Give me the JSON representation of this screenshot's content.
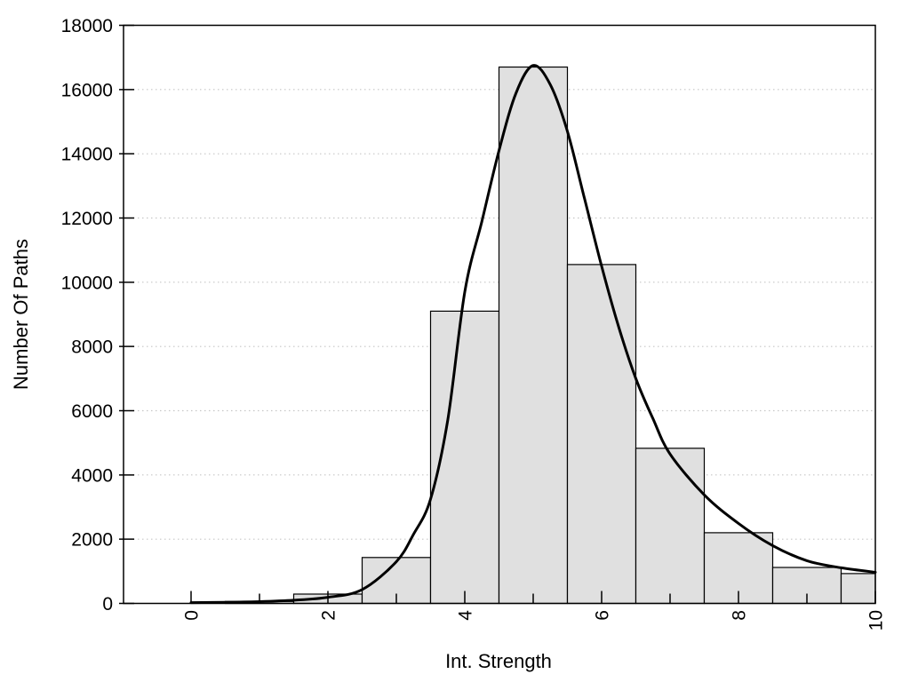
{
  "chart_data": {
    "type": "bar",
    "subtype": "histogram-with-fit-curve",
    "title": "",
    "xlabel": "Int. Strength",
    "ylabel": "Number Of Paths",
    "xlim": [
      -1,
      10
    ],
    "ylim": [
      0,
      18000
    ],
    "grid": "horizontal dotted lines at each y major tick",
    "legend": "none",
    "x_major_ticks": [
      0,
      2,
      4,
      6,
      8,
      10
    ],
    "x_tick_labels": [
      "0",
      "2",
      "4",
      "6",
      "8",
      "10"
    ],
    "x_tick_label_rotation_deg": -90,
    "x_minor_ticks": [
      1,
      3,
      5,
      7,
      9
    ],
    "y_ticks": [
      0,
      2000,
      4000,
      6000,
      8000,
      10000,
      12000,
      14000,
      16000,
      18000
    ],
    "y_tick_labels": [
      "0",
      "2000",
      "4000",
      "6000",
      "8000",
      "10000",
      "12000",
      "14000",
      "16000",
      "18000"
    ],
    "bins": [
      {
        "range": [
          0.5,
          1.5
        ],
        "count": 60
      },
      {
        "range": [
          1.5,
          2.5
        ],
        "count": 290
      },
      {
        "range": [
          2.5,
          3.5
        ],
        "count": 1430
      },
      {
        "range": [
          3.5,
          4.5
        ],
        "count": 9100
      },
      {
        "range": [
          4.5,
          5.5
        ],
        "count": 16700
      },
      {
        "range": [
          5.5,
          6.5
        ],
        "count": 10550
      },
      {
        "range": [
          6.5,
          7.5
        ],
        "count": 4830
      },
      {
        "range": [
          7.5,
          8.5
        ],
        "count": 2200
      },
      {
        "range": [
          8.5,
          9.5
        ],
        "count": 1120
      },
      {
        "range": [
          9.5,
          10.0
        ],
        "count": 930
      }
    ],
    "curve": {
      "name": "smooth-fit-curve",
      "points": [
        [
          0,
          25
        ],
        [
          0.5,
          35
        ],
        [
          1,
          55
        ],
        [
          1.5,
          100
        ],
        [
          2,
          190
        ],
        [
          2.5,
          430
        ],
        [
          3,
          1300
        ],
        [
          3.25,
          2150
        ],
        [
          3.5,
          3250
        ],
        [
          3.75,
          5700
        ],
        [
          4,
          9700
        ],
        [
          4.25,
          11900
        ],
        [
          4.5,
          14100
        ],
        [
          4.75,
          15900
        ],
        [
          5,
          16750
        ],
        [
          5.25,
          16150
        ],
        [
          5.5,
          14700
        ],
        [
          5.75,
          12600
        ],
        [
          6,
          10500
        ],
        [
          6.25,
          8600
        ],
        [
          6.5,
          7000
        ],
        [
          6.75,
          5750
        ],
        [
          7,
          4650
        ],
        [
          7.5,
          3380
        ],
        [
          8,
          2490
        ],
        [
          8.5,
          1800
        ],
        [
          9,
          1330
        ],
        [
          9.5,
          1110
        ],
        [
          10,
          970
        ]
      ]
    },
    "colors": {
      "background": "#ffffff",
      "bar_fill": "#e0e0e0",
      "bar_border": "#000000",
      "curve": "#000000",
      "grid": "#c6c6c6",
      "axis": "#000000",
      "text": "#000000"
    }
  }
}
